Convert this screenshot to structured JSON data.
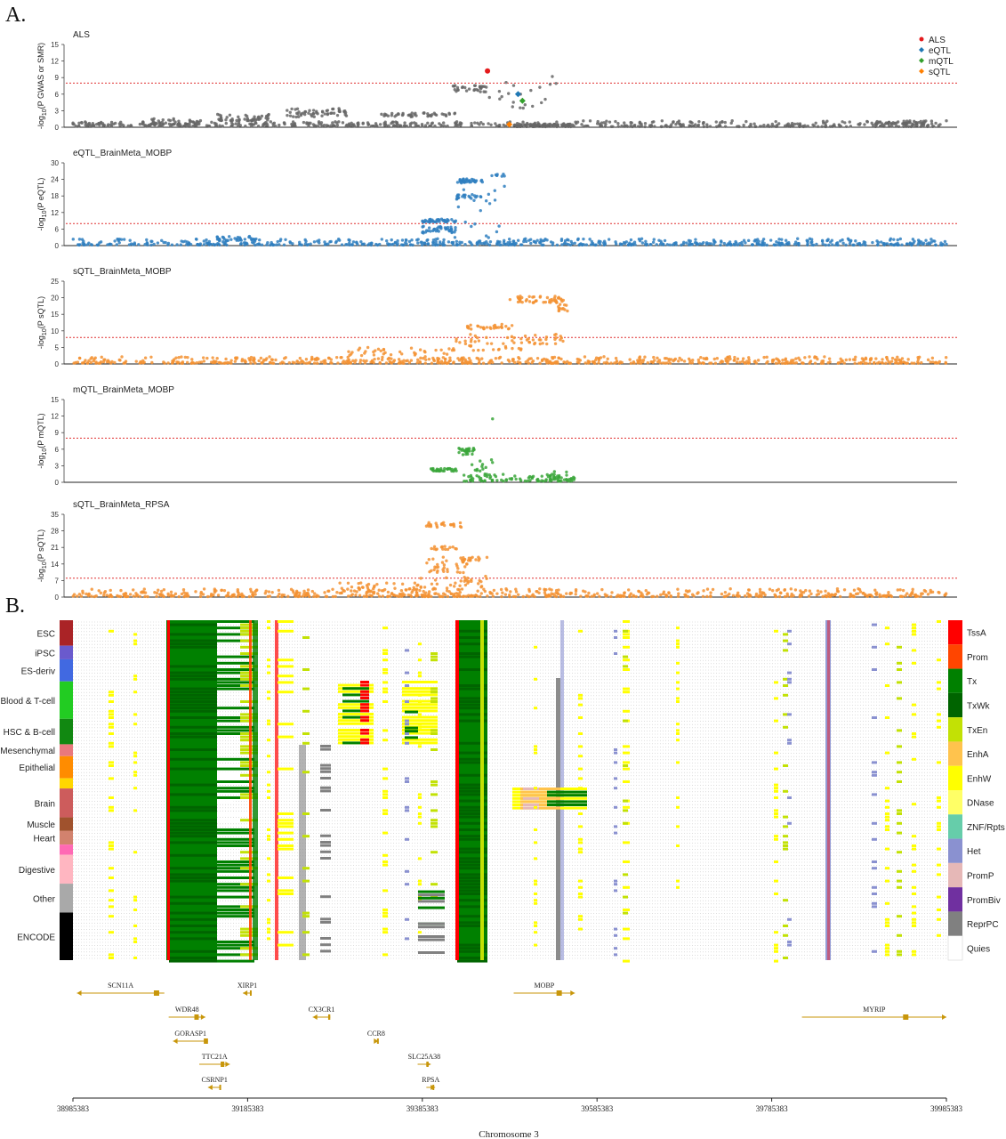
{
  "figure": {
    "panel_a": "A.",
    "panel_b": "B."
  },
  "chart_data": [
    {
      "type": "scatter",
      "title": "ALS",
      "ylabel_main": "-log",
      "ylabel_sub": "10",
      "ylabel_rest": "(P GWAS or SMR)",
      "ylim": [
        0,
        15
      ],
      "yticks": [
        0,
        3,
        6,
        9,
        12,
        15
      ],
      "threshold": 8,
      "color": "#666666",
      "legend": [
        {
          "label": "ALS",
          "color": "#e41a1c",
          "shape": "circle"
        },
        {
          "label": "eQTL",
          "color": "#1f78b4",
          "shape": "diamond"
        },
        {
          "label": "mQTL",
          "color": "#33a02c",
          "shape": "diamond"
        },
        {
          "label": "sQTL",
          "color": "#ff7f00",
          "shape": "diamond"
        }
      ],
      "clusters": [
        {
          "x": [
            38985383,
            39430000
          ],
          "y": [
            0.2,
            1.0
          ],
          "n": 260
        },
        {
          "x": [
            39075000,
            39135000
          ],
          "y": [
            0.5,
            1.6
          ],
          "n": 40
        },
        {
          "x": [
            39150000,
            39210000
          ],
          "y": [
            1.2,
            2.4
          ],
          "n": 50
        },
        {
          "x": [
            39230000,
            39300000
          ],
          "y": [
            1.8,
            3.4
          ],
          "n": 55
        },
        {
          "x": [
            39335000,
            39425000
          ],
          "y": [
            1.9,
            2.6
          ],
          "n": 45
        },
        {
          "x": [
            39420000,
            39460000
          ],
          "y": [
            6.4,
            7.6
          ],
          "n": 30
        },
        {
          "x": [
            39430000,
            39560000
          ],
          "y": [
            0.2,
            1.0
          ],
          "n": 60
        },
        {
          "x": [
            39450000,
            39540000
          ],
          "y": [
            3.2,
            9.5
          ],
          "n": 22
        },
        {
          "x": [
            39490000,
            39560000
          ],
          "y": [
            0.1,
            0.6
          ],
          "n": 60
        },
        {
          "x": [
            39560000,
            39985383
          ],
          "y": [
            0.1,
            1.2
          ],
          "n": 240
        },
        {
          "x": [
            39900000,
            39960000
          ],
          "y": [
            0.6,
            1.1
          ],
          "n": 35
        }
      ],
      "highlights": [
        {
          "x": 39460000,
          "y": 10.2,
          "color": "#e41a1c",
          "shape": "circle"
        },
        {
          "x": 39495000,
          "y": 6.0,
          "color": "#1f78b4",
          "shape": "diamond"
        },
        {
          "x": 39500000,
          "y": 4.8,
          "color": "#33a02c",
          "shape": "diamond"
        },
        {
          "x": 39485000,
          "y": 0.5,
          "color": "#ff7f00",
          "shape": "diamond"
        }
      ]
    },
    {
      "type": "scatter",
      "title": "eQTL_BrainMeta_MOBP",
      "ylabel_main": "-log",
      "ylabel_sub": "10",
      "ylabel_rest": "(P eQTL)",
      "ylim": [
        0,
        30
      ],
      "yticks": [
        0,
        6,
        12,
        18,
        24,
        30
      ],
      "threshold": 8,
      "color": "#2f7fbf",
      "clusters": [
        {
          "x": [
            38985383,
            39985383
          ],
          "y": [
            0.2,
            2.5
          ],
          "n": 620
        },
        {
          "x": [
            39150000,
            39200000
          ],
          "y": [
            1.5,
            3.5
          ],
          "n": 30
        },
        {
          "x": [
            39385000,
            39425000
          ],
          "y": [
            8.5,
            9.6
          ],
          "n": 40
        },
        {
          "x": [
            39385000,
            39425000
          ],
          "y": [
            4.5,
            7.0
          ],
          "n": 40
        },
        {
          "x": [
            39425000,
            39455000
          ],
          "y": [
            22.6,
            24.2
          ],
          "n": 35
        },
        {
          "x": [
            39425000,
            39455000
          ],
          "y": [
            17.0,
            18.5
          ],
          "n": 20
        },
        {
          "x": [
            39465000,
            39480000
          ],
          "y": [
            25.0,
            26.0
          ],
          "n": 8
        },
        {
          "x": [
            39420000,
            39480000
          ],
          "y": [
            2.0,
            22.0
          ],
          "n": 20
        }
      ]
    },
    {
      "type": "scatter",
      "title": "sQTL_BrainMeta_MOBP",
      "ylabel_main": "-log",
      "ylabel_sub": "10",
      "ylabel_rest": "(P sQTL)",
      "ylim": [
        0,
        25
      ],
      "yticks": [
        0,
        5,
        10,
        15,
        20,
        25
      ],
      "threshold": 8,
      "color": "#f39232",
      "clusters": [
        {
          "x": [
            38985383,
            39985383
          ],
          "y": [
            0.2,
            2.2
          ],
          "n": 620
        },
        {
          "x": [
            39300000,
            39420000
          ],
          "y": [
            2.5,
            5.0
          ],
          "n": 35
        },
        {
          "x": [
            39430000,
            39490000
          ],
          "y": [
            10.5,
            12.0
          ],
          "n": 30
        },
        {
          "x": [
            39420000,
            39500000
          ],
          "y": [
            4.0,
            9.0
          ],
          "n": 40
        },
        {
          "x": [
            39485000,
            39550000
          ],
          "y": [
            18.5,
            20.5
          ],
          "n": 50
        },
        {
          "x": [
            39540000,
            39560000
          ],
          "y": [
            16.0,
            18.0
          ],
          "n": 12
        },
        {
          "x": [
            39500000,
            39550000
          ],
          "y": [
            6.0,
            9.0
          ],
          "n": 25
        }
      ]
    },
    {
      "type": "scatter",
      "title": "mQTL_BrainMeta_MOBP",
      "ylabel_main": "-log",
      "ylabel_sub": "10",
      "ylabel_rest": "(P mQTL)",
      "ylim": [
        0,
        15
      ],
      "yticks": [
        0,
        3,
        6,
        9,
        12,
        15
      ],
      "threshold": 8,
      "color": "#3aa63a",
      "clusters": [
        {
          "x": [
            39395000,
            39425000
          ],
          "y": [
            2.0,
            2.5
          ],
          "n": 30
        },
        {
          "x": [
            39425000,
            39445000
          ],
          "y": [
            5.0,
            6.2
          ],
          "n": 25
        },
        {
          "x": [
            39430000,
            39560000
          ],
          "y": [
            0.2,
            1.5
          ],
          "n": 90
        },
        {
          "x": [
            39440000,
            39470000
          ],
          "y": [
            2.0,
            4.5
          ],
          "n": 12
        },
        {
          "x": [
            39465000,
            39468000
          ],
          "y": [
            11.5,
            11.5
          ],
          "n": 1
        },
        {
          "x": [
            39530000,
            39560000
          ],
          "y": [
            0.5,
            2.5
          ],
          "n": 12
        }
      ]
    },
    {
      "type": "scatter",
      "title": "sQTL_BrainMeta_RPSA",
      "ylabel_main": "-log",
      "ylabel_sub": "10",
      "ylabel_rest": "(P sQTL)",
      "ylim": [
        0,
        35
      ],
      "yticks": [
        0,
        7,
        14,
        21,
        28,
        35
      ],
      "threshold": 8,
      "color": "#f39232",
      "clusters": [
        {
          "x": [
            38985383,
            39985383
          ],
          "y": [
            0.2,
            3.5
          ],
          "n": 620
        },
        {
          "x": [
            39290000,
            39380000
          ],
          "y": [
            2.5,
            6.0
          ],
          "n": 40
        },
        {
          "x": [
            39390000,
            39430000
          ],
          "y": [
            29.5,
            31.5
          ],
          "n": 25
        },
        {
          "x": [
            39395000,
            39425000
          ],
          "y": [
            20.0,
            21.5
          ],
          "n": 15
        },
        {
          "x": [
            39390000,
            39440000
          ],
          "y": [
            10.0,
            17.0
          ],
          "n": 35
        },
        {
          "x": [
            39430000,
            39460000
          ],
          "y": [
            15.5,
            17.0
          ],
          "n": 15
        },
        {
          "x": [
            39380000,
            39460000
          ],
          "y": [
            3.0,
            9.0
          ],
          "n": 35
        }
      ]
    },
    {
      "type": "heatmap",
      "groups": [
        {
          "label": "ESC",
          "color": "#aa2326"
        },
        {
          "label": "iPSC",
          "color": "#6a5acd"
        },
        {
          "label": "ES-deriv",
          "color": "#4169e1"
        },
        {
          "label": "Blood & T-cell",
          "color": "#22cc22"
        },
        {
          "label": "HSC & B-cell",
          "color": "#118811"
        },
        {
          "label": "Mesenchymal",
          "color": "#e9787d"
        },
        {
          "label": "Epithelial",
          "color": "#ff8c00"
        },
        {
          "label": "",
          "color": "#ffd700"
        },
        {
          "label": "Brain",
          "color": "#cd5c5c"
        },
        {
          "label": "Muscle",
          "color": "#a0522d"
        },
        {
          "label": "Heart",
          "color": "#d2826e"
        },
        {
          "label": "",
          "color": "#ff69b4"
        },
        {
          "label": "Digestive",
          "color": "#ffb6c1"
        },
        {
          "label": "Other",
          "color": "#a9a9a9"
        },
        {
          "label": "ENCODE",
          "color": "#000000"
        }
      ],
      "states": [
        {
          "label": "TssA",
          "color": "#ff0000"
        },
        {
          "label": "Prom",
          "color": "#ff4500"
        },
        {
          "label": "Tx",
          "color": "#008000"
        },
        {
          "label": "TxWk",
          "color": "#006400"
        },
        {
          "label": "TxEn",
          "color": "#c2e105"
        },
        {
          "label": "EnhA",
          "color": "#ffc34d"
        },
        {
          "label": "EnhW",
          "color": "#ffff00"
        },
        {
          "label": "DNase",
          "color": "#ffff66"
        },
        {
          "label": "ZNF/Rpts",
          "color": "#66cdaa"
        },
        {
          "label": "Het",
          "color": "#8a91d0"
        },
        {
          "label": "PromP",
          "color": "#e6b8b7"
        },
        {
          "label": "PromBiv",
          "color": "#7030a0"
        },
        {
          "label": "ReprPC",
          "color": "#808080"
        },
        {
          "label": "Quies",
          "color": "#ffffff"
        }
      ],
      "genes": [
        {
          "name": "SCN11A",
          "start": 38990000,
          "end": 39090000,
          "dir": "-"
        },
        {
          "name": "WDR48",
          "start": 39095000,
          "end": 39137000,
          "dir": "+"
        },
        {
          "name": "GORASP1",
          "start": 39100000,
          "end": 39140000,
          "dir": "-"
        },
        {
          "name": "TTC21A",
          "start": 39130000,
          "end": 39165000,
          "dir": "+"
        },
        {
          "name": "CSRNP1",
          "start": 39140000,
          "end": 39155000,
          "dir": "-"
        },
        {
          "name": "XIRP1",
          "start": 39180000,
          "end": 39190000,
          "dir": "-"
        },
        {
          "name": "CX3CR1",
          "start": 39260000,
          "end": 39280000,
          "dir": "-"
        },
        {
          "name": "CCR8",
          "start": 39330000,
          "end": 39335000,
          "dir": "+"
        },
        {
          "name": "SLC25A38",
          "start": 39380000,
          "end": 39395000,
          "dir": "+"
        },
        {
          "name": "RPSA",
          "start": 39390000,
          "end": 39400000,
          "dir": "+"
        },
        {
          "name": "MOBP",
          "start": 39490000,
          "end": 39560000,
          "dir": "+"
        },
        {
          "name": "MYRIP",
          "start": 39820000,
          "end": 39985383,
          "dir": "+"
        }
      ],
      "xticks": [
        "38985383",
        "39185383",
        "39385383",
        "39585383",
        "39785383",
        "39985383"
      ],
      "xlim": [
        38985383,
        39985383
      ],
      "xlabel": "Chromosome 3"
    }
  ]
}
